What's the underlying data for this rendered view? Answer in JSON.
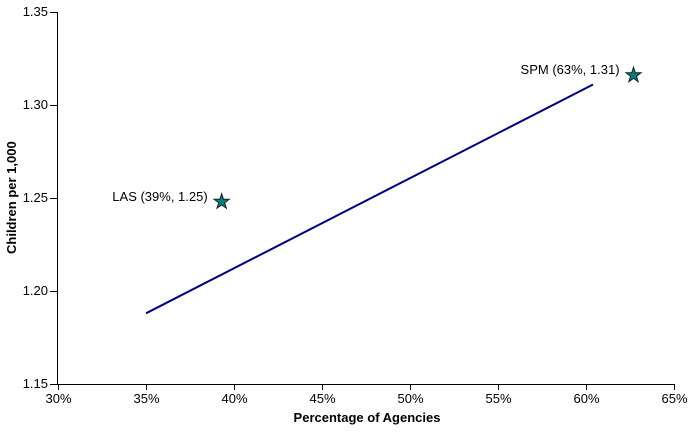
{
  "chart_data": {
    "type": "scatter",
    "title": "",
    "xlabel": "Percentage of Agencies",
    "ylabel": "Children per 1,000",
    "x_ticks": [
      "30%",
      "35%",
      "40%",
      "45%",
      "50%",
      "55%",
      "60%",
      "65%"
    ],
    "y_ticks": [
      "1.35",
      "1.30",
      "1.25",
      "1.20",
      "1.15"
    ],
    "x_range_pct": [
      30,
      65
    ],
    "y_range": [
      1.15,
      1.35
    ],
    "grid": false,
    "legend": "none",
    "points": [
      {
        "name": "LAS",
        "x_pct": 39,
        "y": 1.25,
        "label": "LAS (39%, 1.25)",
        "plot_x_pct": 39.3,
        "plot_y": 1.248
      },
      {
        "name": "SPM",
        "x_pct": 63,
        "y": 1.31,
        "label": "SPM (63%, 1.31)",
        "plot_x_pct": 62.7,
        "plot_y": 1.316
      }
    ],
    "trend_line": {
      "from": {
        "x_pct": 35,
        "y": 1.188
      },
      "to": {
        "x_pct": 60.4,
        "y": 1.311
      },
      "color": "#000080"
    },
    "marker": {
      "shape": "star",
      "fill": "#008080",
      "stroke": "#1f1f1f"
    },
    "axis_color": "#000000",
    "background": "#ffffff"
  }
}
